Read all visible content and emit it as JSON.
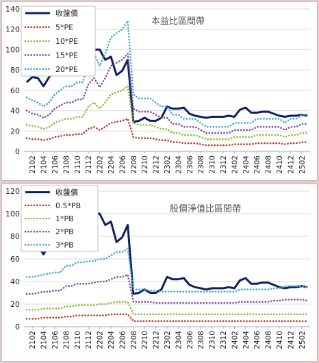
{
  "chart_data": [
    {
      "type": "line",
      "title": "本益比區間帶",
      "ylim": [
        0,
        140
      ],
      "yticks": [
        0,
        20,
        40,
        60,
        80,
        100,
        120,
        140
      ],
      "grid": true,
      "legend_placement": "top-left",
      "xtick_labels": [
        "2102",
        "2104",
        "2106",
        "2108",
        "2110",
        "2112",
        "2202",
        "2204",
        "2206",
        "2208",
        "2210",
        "2212",
        "2302",
        "2304",
        "2306",
        "2308",
        "2310",
        "2312",
        "2402",
        "2404",
        "2406",
        "2408",
        "2410",
        "2412",
        "2502"
      ],
      "x": [
        "2101",
        "2102",
        "2103",
        "2104",
        "2105",
        "2106",
        "2107",
        "2108",
        "2109",
        "2110",
        "2111",
        "2112",
        "2201",
        "2202",
        "2203",
        "2204",
        "2205",
        "2206",
        "2207",
        "2208",
        "2209",
        "2210",
        "2211",
        "2212",
        "2301",
        "2302",
        "2303",
        "2304",
        "2305",
        "2306",
        "2307",
        "2308",
        "2309",
        "2310",
        "2311",
        "2312",
        "2401",
        "2402",
        "2403",
        "2404",
        "2405",
        "2406",
        "2407",
        "2408",
        "2409",
        "2410",
        "2411",
        "2412",
        "2501",
        "2502",
        "2503"
      ],
      "series": [
        {
          "name": "收盤價",
          "color": "#0d1f5c",
          "style": "solid",
          "values": [
            68,
            73,
            72,
            64,
            73,
            79,
            84,
            88,
            87,
            86,
            87,
            98,
            100,
            100,
            90,
            93,
            75,
            79,
            90,
            29,
            30,
            33,
            30,
            30,
            33,
            44,
            42,
            42,
            43,
            37,
            35,
            34,
            33,
            34,
            34,
            34,
            35,
            34,
            41,
            43,
            38,
            38,
            39,
            39,
            37,
            35,
            34,
            35,
            35,
            36,
            35
          ]
        },
        {
          "name": "5*PE",
          "color": "#c0392b",
          "style": "dotted",
          "values": [
            13,
            12,
            12,
            11,
            12,
            14,
            15,
            16,
            16,
            17,
            17,
            22,
            24,
            21,
            24,
            28,
            29,
            30,
            32,
            14,
            13,
            13,
            13,
            12,
            11,
            11,
            9,
            9,
            8,
            8,
            8,
            7,
            6,
            6,
            6,
            6,
            6,
            7,
            7,
            7,
            7,
            8,
            8,
            8,
            8,
            8,
            7,
            8,
            8,
            9,
            9
          ]
        },
        {
          "name": "10*PE",
          "color": "#8fbc3a",
          "style": "dotted",
          "values": [
            26,
            25,
            24,
            22,
            24,
            28,
            30,
            32,
            32,
            34,
            34,
            44,
            48,
            42,
            48,
            56,
            58,
            60,
            64,
            28,
            26,
            26,
            26,
            24,
            22,
            22,
            18,
            18,
            16,
            16,
            16,
            14,
            12,
            12,
            12,
            12,
            12,
            14,
            14,
            14,
            14,
            16,
            16,
            16,
            16,
            16,
            14,
            16,
            16,
            18,
            18
          ]
        },
        {
          "name": "15*PE",
          "color": "#7b4fa0",
          "style": "dotted",
          "values": [
            40,
            37,
            36,
            33,
            36,
            42,
            45,
            48,
            48,
            51,
            51,
            66,
            72,
            63,
            72,
            84,
            87,
            90,
            96,
            42,
            39,
            39,
            39,
            36,
            33,
            33,
            27,
            27,
            24,
            24,
            24,
            21,
            18,
            18,
            18,
            18,
            18,
            21,
            21,
            21,
            21,
            24,
            24,
            24,
            24,
            24,
            21,
            24,
            24,
            27,
            27
          ]
        },
        {
          "name": "20*PE",
          "color": "#3fa9c9",
          "style": "dotted",
          "values": [
            53,
            50,
            48,
            44,
            48,
            56,
            60,
            64,
            64,
            68,
            68,
            88,
            96,
            84,
            96,
            112,
            116,
            120,
            128,
            56,
            52,
            52,
            52,
            48,
            44,
            44,
            36,
            36,
            32,
            32,
            32,
            28,
            24,
            24,
            24,
            24,
            24,
            28,
            28,
            28,
            28,
            32,
            32,
            32,
            32,
            32,
            28,
            32,
            32,
            36,
            36
          ]
        }
      ]
    },
    {
      "type": "line",
      "title": "股價淨值比區間帶",
      "ylim": [
        0,
        120
      ],
      "yticks": [
        0,
        20,
        40,
        60,
        80,
        100,
        120
      ],
      "grid": true,
      "legend_placement": "top-left",
      "xtick_labels": [
        "2102",
        "2104",
        "2106",
        "2108",
        "2110",
        "2112",
        "2202",
        "2204",
        "2206",
        "2208",
        "2210",
        "2212",
        "2302",
        "2304",
        "2306",
        "2308",
        "2310",
        "2312",
        "2402",
        "2404",
        "2406",
        "2408",
        "2410",
        "2412",
        "2502"
      ],
      "x": [
        "2101",
        "2102",
        "2103",
        "2104",
        "2105",
        "2106",
        "2107",
        "2108",
        "2109",
        "2110",
        "2111",
        "2112",
        "2201",
        "2202",
        "2203",
        "2204",
        "2205",
        "2206",
        "2207",
        "2208",
        "2209",
        "2210",
        "2211",
        "2212",
        "2301",
        "2302",
        "2303",
        "2304",
        "2305",
        "2306",
        "2307",
        "2308",
        "2309",
        "2310",
        "2311",
        "2312",
        "2401",
        "2402",
        "2403",
        "2404",
        "2405",
        "2406",
        "2407",
        "2408",
        "2409",
        "2410",
        "2411",
        "2412",
        "2501",
        "2502",
        "2503"
      ],
      "series": [
        {
          "name": "收盤價",
          "color": "#0d1f5c",
          "style": "solid",
          "values": [
            68,
            73,
            72,
            64,
            73,
            79,
            84,
            88,
            87,
            86,
            87,
            98,
            100,
            100,
            90,
            93,
            75,
            79,
            90,
            29,
            30,
            33,
            30,
            30,
            33,
            44,
            42,
            42,
            43,
            37,
            35,
            34,
            33,
            34,
            34,
            34,
            35,
            34,
            41,
            43,
            38,
            38,
            39,
            39,
            37,
            35,
            34,
            35,
            35,
            36,
            35
          ]
        },
        {
          "name": "0.5*PB",
          "color": "#c0392b",
          "style": "dotted",
          "values": [
            7,
            7,
            7,
            8,
            8,
            8,
            8,
            9,
            9,
            10,
            10,
            10,
            10,
            10,
            10,
            11,
            11,
            11,
            11,
            5,
            5,
            5,
            5,
            5,
            5,
            5,
            5,
            5,
            5,
            5,
            5,
            5,
            5,
            5,
            5,
            5,
            5,
            5,
            5,
            5,
            5,
            5,
            5,
            5,
            5,
            5,
            5,
            5,
            5,
            5,
            5
          ]
        },
        {
          "name": "1*PB",
          "color": "#8fbc3a",
          "style": "dotted",
          "values": [
            15,
            15,
            15,
            16,
            16,
            16,
            16,
            18,
            18,
            19,
            19,
            19,
            19,
            20,
            20,
            21,
            22,
            22,
            22,
            11,
            11,
            11,
            11,
            11,
            11,
            11,
            11,
            11,
            11,
            11,
            11,
            11,
            11,
            11,
            11,
            11,
            11,
            11,
            11,
            11,
            11,
            11,
            11,
            11,
            11,
            11,
            11,
            11,
            11,
            11,
            11
          ]
        },
        {
          "name": "2*PB",
          "color": "#7b4fa0",
          "style": "dotted",
          "values": [
            29,
            29,
            30,
            31,
            31,
            32,
            32,
            36,
            36,
            38,
            38,
            38,
            39,
            40,
            40,
            42,
            44,
            44,
            46,
            22,
            22,
            22,
            22,
            21,
            21,
            21,
            21,
            21,
            21,
            21,
            21,
            21,
            21,
            21,
            21,
            21,
            21,
            21,
            22,
            22,
            22,
            22,
            22,
            22,
            23,
            23,
            24,
            24,
            24,
            24,
            23
          ]
        },
        {
          "name": "3*PB",
          "color": "#3fa9c9",
          "style": "dotted",
          "values": [
            44,
            44,
            45,
            46,
            47,
            48,
            48,
            54,
            54,
            57,
            57,
            58,
            58,
            60,
            60,
            63,
            66,
            66,
            69,
            33,
            33,
            33,
            32,
            32,
            31,
            31,
            31,
            31,
            31,
            31,
            31,
            31,
            31,
            31,
            31,
            31,
            31,
            31,
            33,
            33,
            33,
            33,
            33,
            33,
            34,
            34,
            36,
            36,
            36,
            36,
            35
          ]
        }
      ]
    }
  ]
}
